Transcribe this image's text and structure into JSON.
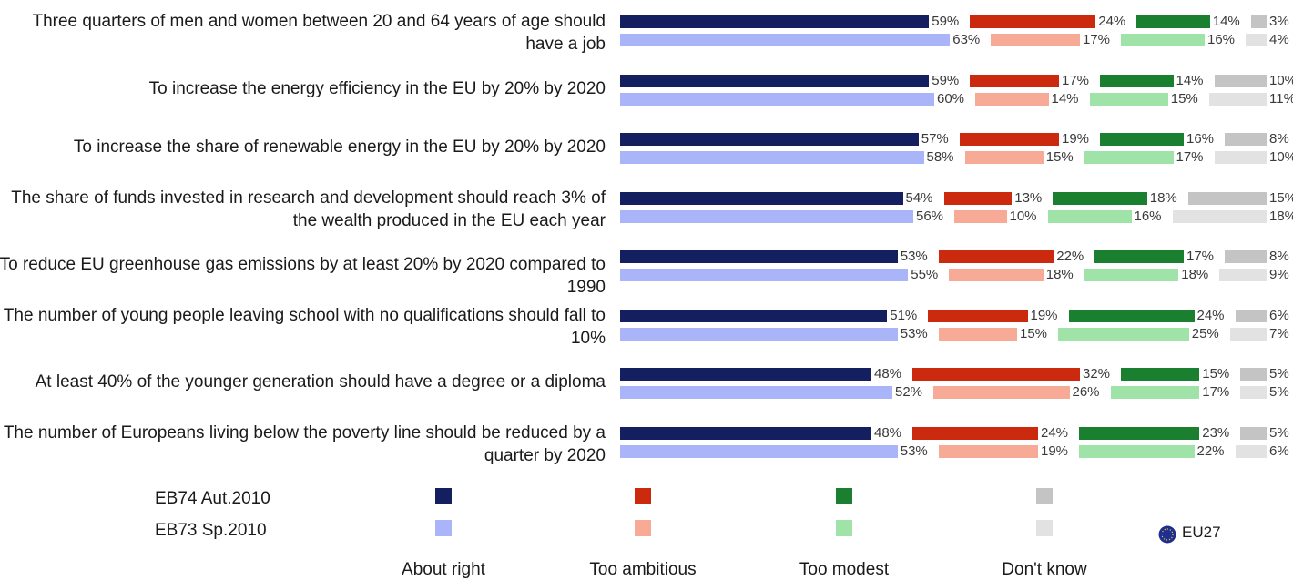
{
  "chart_data": {
    "type": "bar",
    "orientation": "horizontal",
    "stacking": "stacked",
    "categories": [
      "Three quarters of men and women between 20 and 64 years of age should have a job",
      "To increase the energy efficiency in the EU by 20% by 2020",
      "To increase the share of renewable energy in the EU by 20% by 2020",
      "The share of funds invested in research and development should reach 3% of the wealth produced in the EU each year",
      "To reduce EU greenhouse gas emissions by at least 20% by 2020 compared to 1990",
      "The number of young people leaving school with no qualifications should fall to 10%",
      "At least 40% of the younger generation should have a degree or a diploma",
      "The number of Europeans living below the poverty line should be reduced by a quarter by 2020"
    ],
    "waves": [
      "EB74 Aut.2010",
      "EB73 Sp.2010"
    ],
    "answers": [
      "About right",
      "Too ambitious",
      "Too modest",
      "Don't know"
    ],
    "values": {
      "EB74 Aut.2010": [
        [
          59,
          24,
          14,
          3
        ],
        [
          59,
          17,
          14,
          10
        ],
        [
          57,
          19,
          16,
          8
        ],
        [
          54,
          13,
          18,
          15
        ],
        [
          53,
          22,
          17,
          8
        ],
        [
          51,
          19,
          24,
          6
        ],
        [
          48,
          32,
          15,
          5
        ],
        [
          48,
          24,
          23,
          5
        ]
      ],
      "EB73 Sp.2010": [
        [
          63,
          17,
          16,
          4
        ],
        [
          60,
          14,
          15,
          11
        ],
        [
          58,
          15,
          17,
          10
        ],
        [
          56,
          10,
          16,
          18
        ],
        [
          55,
          18,
          18,
          9
        ],
        [
          53,
          15,
          25,
          7
        ],
        [
          52,
          26,
          17,
          5
        ],
        [
          53,
          19,
          22,
          6
        ]
      ]
    },
    "colors": {
      "EB74 Aut.2010": [
        "#141f5f",
        "#cc2a0e",
        "#1a7f2e",
        "#c4c4c4"
      ],
      "EB73 Sp.2010": [
        "#aab4f8",
        "#f7ab96",
        "#9fe3a8",
        "#e2e2e2"
      ]
    },
    "value_suffix": "%",
    "xlim": [
      0,
      100
    ],
    "legend_position": "bottom",
    "extra_legend_label": "EU27"
  }
}
